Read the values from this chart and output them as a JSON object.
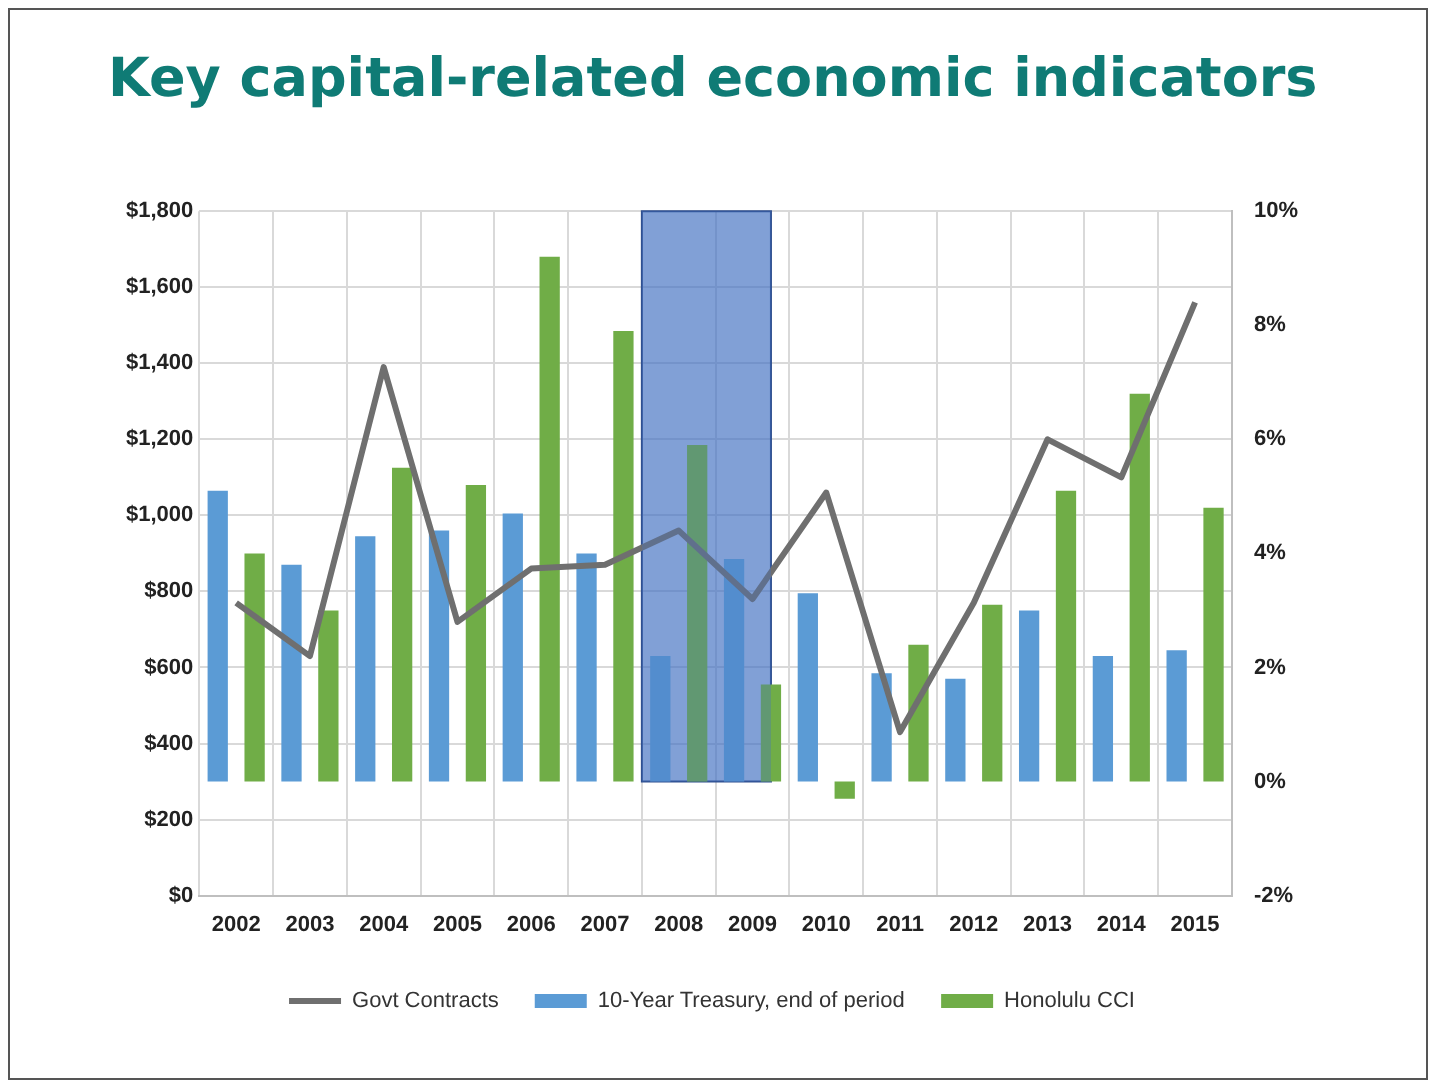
{
  "chart_data": {
    "type": "bar",
    "title": "Key capital-related economic indicators",
    "categories": [
      "2002",
      "2003",
      "2004",
      "2005",
      "2006",
      "2007",
      "2008",
      "2009",
      "2010",
      "2011",
      "2012",
      "2013",
      "2014",
      "2015"
    ],
    "series": [
      {
        "name": "10-Year Treasury, end of period",
        "color": "#5b9bd5",
        "axis": "y2",
        "values": [
          5.1,
          3.8,
          4.3,
          4.4,
          4.7,
          4.0,
          2.2,
          3.9,
          3.3,
          1.9,
          1.8,
          3.0,
          2.2,
          2.3
        ]
      },
      {
        "name": "Honolulu CCI",
        "color": "#70ad47",
        "axis": "y2",
        "values": [
          4.0,
          3.0,
          5.5,
          5.2,
          9.2,
          7.9,
          5.9,
          1.7,
          -0.3,
          2.4,
          3.1,
          5.1,
          6.8,
          4.8
        ]
      },
      {
        "name": "Govt Contracts",
        "type": "line",
        "color": "#6f6f6f",
        "values": [
          770,
          630,
          1390,
          720,
          860,
          870,
          960,
          780,
          1060,
          430,
          770,
          1200,
          1100,
          1560
        ]
      }
    ],
    "ylim": [
      0,
      1800
    ],
    "yticks": [
      {
        "value": 0,
        "label": "$0"
      },
      {
        "value": 200,
        "label": "$200"
      },
      {
        "value": 400,
        "label": "$400"
      },
      {
        "value": 600,
        "label": "$600"
      },
      {
        "value": 800,
        "label": "$800"
      },
      {
        "value": 1000,
        "label": "$1,000"
      },
      {
        "value": 1200,
        "label": "$1,200"
      },
      {
        "value": 1400,
        "label": "$1,400"
      },
      {
        "value": 1600,
        "label": "$1,600"
      },
      {
        "value": 1800,
        "label": "$1,800"
      }
    ],
    "y2lim": [
      -2,
      10
    ],
    "y2ticks": [
      {
        "value": -2,
        "label": "-2%"
      },
      {
        "value": 0,
        "label": "0%"
      },
      {
        "value": 2,
        "label": "2%"
      },
      {
        "value": 4,
        "label": "4%"
      },
      {
        "value": 6,
        "label": "6%"
      },
      {
        "value": 8,
        "label": "8%"
      },
      {
        "value": 10,
        "label": "10%"
      }
    ],
    "bands": [
      {
        "axis": "x",
        "from": "2008",
        "to": "2009",
        "color": "#4472c4"
      }
    ],
    "grid": true,
    "legend": "bottom",
    "marker": "none",
    "line_style": "solid"
  }
}
